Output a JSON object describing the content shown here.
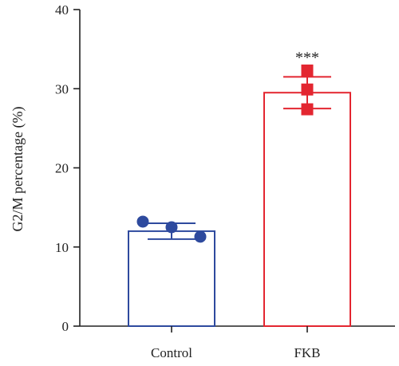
{
  "chart_data": {
    "type": "bar",
    "categories": [
      "Control",
      "FKB"
    ],
    "values": [
      12.0,
      29.5
    ],
    "errors": [
      1.0,
      2.0
    ],
    "points": [
      [
        13.2,
        12.5,
        11.3
      ],
      [
        32.3,
        29.9,
        27.4
      ]
    ],
    "colors": [
      "#2e4a9e",
      "#e32630"
    ],
    "marker_shapes": [
      "circle",
      "square"
    ],
    "annotations": [
      {
        "category": "FKB",
        "text": "***"
      }
    ],
    "ylabel": "G2/M percentage (%)",
    "xlabel": "",
    "ylim": [
      0,
      40
    ],
    "yticks": [
      0,
      10,
      20,
      30,
      40
    ],
    "grid": false,
    "legend": "none"
  }
}
